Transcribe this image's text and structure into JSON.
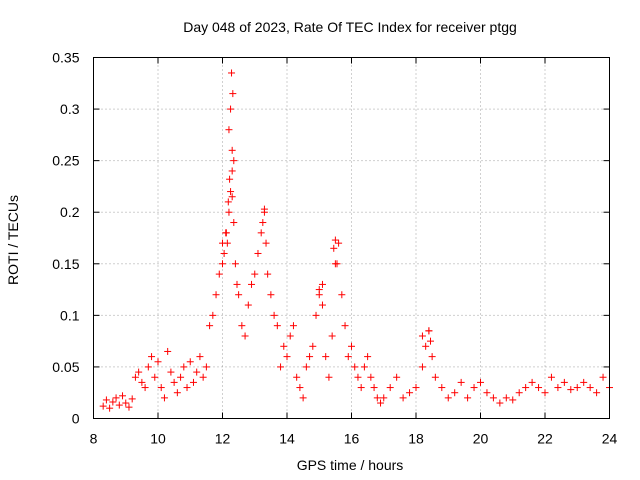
{
  "chart_data": {
    "type": "scatter",
    "title": "Day 048 of 2023, Rate Of TEC Index for receiver ptgg",
    "xlabel": "GPS time / hours",
    "ylabel": "ROTI / TECUs",
    "xlim": [
      8,
      24
    ],
    "ylim": [
      0,
      0.35
    ],
    "xticks": [
      8,
      10,
      12,
      14,
      16,
      18,
      20,
      22,
      24
    ],
    "xtick_labels": [
      "8",
      "10",
      "12",
      "14",
      "16",
      "18",
      "20",
      "22",
      "24"
    ],
    "yticks": [
      0,
      0.05,
      0.1,
      0.15,
      0.2,
      0.25,
      0.3,
      0.35
    ],
    "ytick_labels": [
      "0",
      "0.05",
      "0.1",
      "0.15",
      "0.2",
      "0.25",
      "0.3",
      "0.35"
    ],
    "grid": true,
    "marker": "plus",
    "color": "#ff0000",
    "series": [
      {
        "x": [
          8.3,
          8.4,
          8.5,
          8.6,
          8.7,
          8.8,
          8.9,
          9.0,
          9.1,
          9.2,
          9.3,
          9.4,
          9.5,
          9.6,
          9.7,
          9.8,
          9.9,
          10.0,
          10.1,
          10.2,
          10.3,
          10.4,
          10.5,
          10.6,
          10.7,
          10.8,
          10.9,
          11.0,
          11.1,
          11.2,
          11.3,
          11.4,
          11.5,
          11.6,
          11.7,
          11.8,
          11.9,
          12.0,
          12.05,
          12.1,
          12.15,
          12.2,
          12.25,
          12.3,
          12.35,
          12.4,
          12.45,
          12.5,
          12.6,
          12.7,
          12.8,
          12.9,
          13.0,
          13.1,
          13.2,
          13.3,
          13.35,
          13.4,
          13.5,
          13.6,
          13.7,
          13.8,
          13.9,
          14.0,
          14.1,
          14.2,
          14.3,
          14.4,
          14.5,
          14.6,
          14.7,
          14.8,
          14.9,
          15.0,
          15.1,
          15.2,
          15.3,
          15.4,
          15.5,
          15.6,
          15.7,
          15.8,
          15.9,
          16.0,
          16.1,
          16.2,
          16.3,
          16.4,
          16.5,
          16.6,
          16.7,
          16.8,
          16.9,
          17.0,
          17.2,
          17.4,
          17.6,
          17.8,
          18.0,
          18.2,
          18.3,
          18.4,
          18.5,
          18.6,
          18.8,
          19.0,
          19.2,
          19.4,
          19.6,
          19.8,
          20.0,
          20.2,
          20.4,
          20.6,
          20.8,
          21.0,
          21.2,
          21.4,
          21.6,
          21.8,
          22.0,
          22.2,
          22.4,
          22.6,
          22.8,
          23.0,
          23.2,
          23.4,
          23.6,
          23.8,
          24.0,
          12.28,
          12.32,
          12.25,
          12.2,
          12.35,
          12.3,
          13.3,
          13.25,
          15.5,
          15.45,
          15.55,
          15.0,
          15.1,
          18.4,
          18.45,
          18.2,
          12.22,
          12.12,
          12.0,
          12.18,
          12.3
        ],
        "y": [
          0.012,
          0.018,
          0.01,
          0.016,
          0.02,
          0.013,
          0.022,
          0.015,
          0.011,
          0.019,
          0.04,
          0.045,
          0.035,
          0.03,
          0.05,
          0.06,
          0.04,
          0.055,
          0.03,
          0.02,
          0.065,
          0.045,
          0.035,
          0.025,
          0.04,
          0.05,
          0.03,
          0.055,
          0.035,
          0.045,
          0.06,
          0.04,
          0.05,
          0.09,
          0.1,
          0.12,
          0.14,
          0.15,
          0.16,
          0.18,
          0.17,
          0.2,
          0.22,
          0.24,
          0.19,
          0.15,
          0.13,
          0.12,
          0.09,
          0.08,
          0.11,
          0.13,
          0.14,
          0.16,
          0.18,
          0.2,
          0.17,
          0.14,
          0.12,
          0.1,
          0.09,
          0.05,
          0.07,
          0.06,
          0.08,
          0.09,
          0.04,
          0.03,
          0.02,
          0.05,
          0.06,
          0.07,
          0.1,
          0.12,
          0.13,
          0.06,
          0.04,
          0.08,
          0.15,
          0.17,
          0.12,
          0.09,
          0.06,
          0.07,
          0.05,
          0.04,
          0.03,
          0.05,
          0.06,
          0.04,
          0.03,
          0.02,
          0.015,
          0.02,
          0.03,
          0.04,
          0.02,
          0.025,
          0.03,
          0.05,
          0.07,
          0.085,
          0.06,
          0.04,
          0.03,
          0.02,
          0.025,
          0.035,
          0.02,
          0.03,
          0.035,
          0.025,
          0.02,
          0.015,
          0.02,
          0.018,
          0.025,
          0.03,
          0.035,
          0.03,
          0.025,
          0.04,
          0.03,
          0.035,
          0.028,
          0.03,
          0.035,
          0.03,
          0.025,
          0.04,
          0.03,
          0.335,
          0.315,
          0.3,
          0.28,
          0.25,
          0.26,
          0.203,
          0.19,
          0.173,
          0.165,
          0.15,
          0.125,
          0.11,
          0.085,
          0.075,
          0.08,
          0.232,
          0.18,
          0.17,
          0.21,
          0.215
        ]
      }
    ]
  }
}
